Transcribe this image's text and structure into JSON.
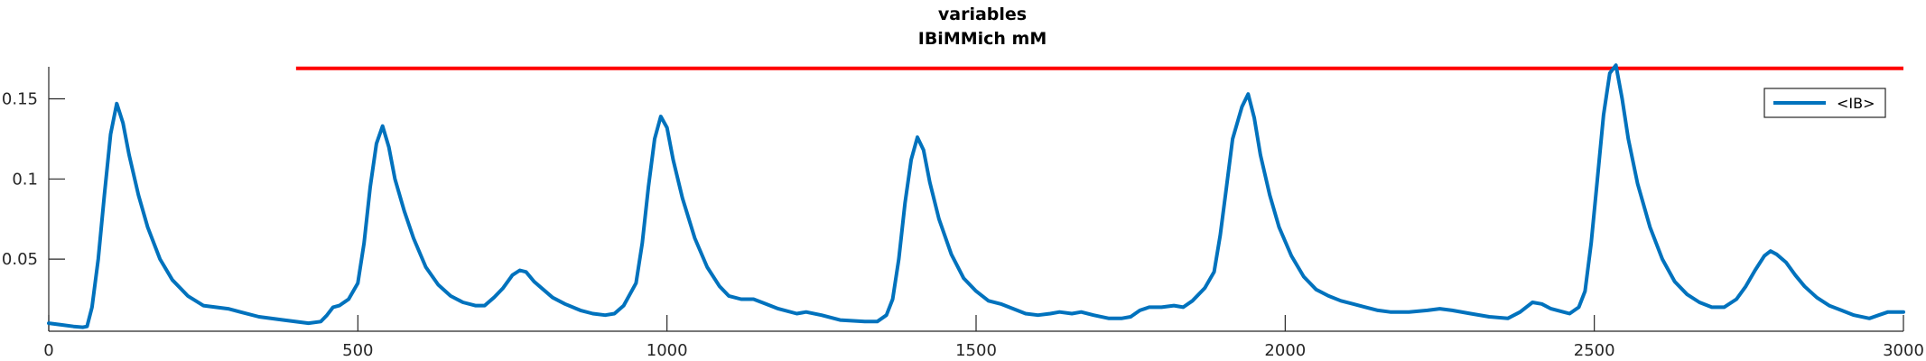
{
  "chart_data": {
    "type": "line",
    "title": [
      "variables",
      "IBiMMich mM"
    ],
    "xlim": [
      0,
      3000
    ],
    "ylim": [
      0.005,
      0.17
    ],
    "x_ticks": [
      0,
      500,
      1000,
      1500,
      2000,
      2500,
      3000
    ],
    "y_ticks": [
      0.05,
      0.1,
      0.15
    ],
    "y_tick_labels": [
      "0.05",
      "0.1",
      "0.15"
    ],
    "legend": {
      "placement": "top-right",
      "entries": [
        "<IB>"
      ]
    },
    "colors": {
      "series": "#0072BD",
      "threshold": "#FF0000",
      "axes": "#262626"
    },
    "grid": false,
    "threshold_line": {
      "y": 0.169,
      "x_start": 400,
      "x_end": 3000
    },
    "series": [
      {
        "name": "<IB>",
        "points": [
          [
            0,
            0.01
          ],
          [
            20,
            0.009
          ],
          [
            40,
            0.008
          ],
          [
            55,
            0.0075
          ],
          [
            62,
            0.008
          ],
          [
            70,
            0.02
          ],
          [
            80,
            0.05
          ],
          [
            90,
            0.09
          ],
          [
            100,
            0.128
          ],
          [
            110,
            0.147
          ],
          [
            120,
            0.135
          ],
          [
            130,
            0.115
          ],
          [
            145,
            0.09
          ],
          [
            160,
            0.07
          ],
          [
            180,
            0.05
          ],
          [
            200,
            0.037
          ],
          [
            225,
            0.027
          ],
          [
            250,
            0.021
          ],
          [
            270,
            0.02
          ],
          [
            290,
            0.019
          ],
          [
            310,
            0.017
          ],
          [
            340,
            0.014
          ],
          [
            380,
            0.012
          ],
          [
            420,
            0.01
          ],
          [
            440,
            0.011
          ],
          [
            450,
            0.015
          ],
          [
            460,
            0.02
          ],
          [
            470,
            0.021
          ],
          [
            485,
            0.025
          ],
          [
            500,
            0.035
          ],
          [
            510,
            0.06
          ],
          [
            520,
            0.095
          ],
          [
            530,
            0.122
          ],
          [
            540,
            0.133
          ],
          [
            550,
            0.12
          ],
          [
            560,
            0.1
          ],
          [
            575,
            0.08
          ],
          [
            590,
            0.063
          ],
          [
            610,
            0.045
          ],
          [
            630,
            0.034
          ],
          [
            650,
            0.027
          ],
          [
            670,
            0.023
          ],
          [
            690,
            0.021
          ],
          [
            705,
            0.021
          ],
          [
            720,
            0.026
          ],
          [
            735,
            0.032
          ],
          [
            750,
            0.04
          ],
          [
            762,
            0.043
          ],
          [
            772,
            0.042
          ],
          [
            785,
            0.036
          ],
          [
            800,
            0.031
          ],
          [
            815,
            0.026
          ],
          [
            835,
            0.022
          ],
          [
            860,
            0.018
          ],
          [
            880,
            0.016
          ],
          [
            900,
            0.015
          ],
          [
            915,
            0.016
          ],
          [
            930,
            0.021
          ],
          [
            950,
            0.035
          ],
          [
            960,
            0.06
          ],
          [
            970,
            0.095
          ],
          [
            980,
            0.125
          ],
          [
            990,
            0.139
          ],
          [
            1000,
            0.132
          ],
          [
            1010,
            0.112
          ],
          [
            1025,
            0.088
          ],
          [
            1045,
            0.063
          ],
          [
            1065,
            0.045
          ],
          [
            1085,
            0.033
          ],
          [
            1100,
            0.027
          ],
          [
            1120,
            0.025
          ],
          [
            1140,
            0.025
          ],
          [
            1160,
            0.022
          ],
          [
            1180,
            0.019
          ],
          [
            1210,
            0.016
          ],
          [
            1225,
            0.017
          ],
          [
            1250,
            0.015
          ],
          [
            1280,
            0.012
          ],
          [
            1320,
            0.011
          ],
          [
            1340,
            0.011
          ],
          [
            1355,
            0.015
          ],
          [
            1365,
            0.025
          ],
          [
            1375,
            0.05
          ],
          [
            1385,
            0.085
          ],
          [
            1395,
            0.112
          ],
          [
            1405,
            0.126
          ],
          [
            1415,
            0.118
          ],
          [
            1425,
            0.098
          ],
          [
            1440,
            0.075
          ],
          [
            1460,
            0.053
          ],
          [
            1480,
            0.038
          ],
          [
            1500,
            0.03
          ],
          [
            1520,
            0.024
          ],
          [
            1540,
            0.022
          ],
          [
            1560,
            0.019
          ],
          [
            1580,
            0.016
          ],
          [
            1600,
            0.015
          ],
          [
            1620,
            0.016
          ],
          [
            1635,
            0.017
          ],
          [
            1655,
            0.016
          ],
          [
            1670,
            0.017
          ],
          [
            1690,
            0.015
          ],
          [
            1715,
            0.013
          ],
          [
            1735,
            0.013
          ],
          [
            1750,
            0.014
          ],
          [
            1765,
            0.018
          ],
          [
            1780,
            0.02
          ],
          [
            1800,
            0.02
          ],
          [
            1820,
            0.021
          ],
          [
            1835,
            0.02
          ],
          [
            1850,
            0.024
          ],
          [
            1870,
            0.032
          ],
          [
            1885,
            0.042
          ],
          [
            1895,
            0.065
          ],
          [
            1905,
            0.095
          ],
          [
            1915,
            0.125
          ],
          [
            1930,
            0.145
          ],
          [
            1940,
            0.153
          ],
          [
            1950,
            0.138
          ],
          [
            1960,
            0.115
          ],
          [
            1975,
            0.09
          ],
          [
            1990,
            0.07
          ],
          [
            2010,
            0.052
          ],
          [
            2030,
            0.039
          ],
          [
            2050,
            0.031
          ],
          [
            2070,
            0.027
          ],
          [
            2090,
            0.024
          ],
          [
            2110,
            0.022
          ],
          [
            2130,
            0.02
          ],
          [
            2150,
            0.018
          ],
          [
            2170,
            0.017
          ],
          [
            2200,
            0.017
          ],
          [
            2230,
            0.018
          ],
          [
            2250,
            0.019
          ],
          [
            2270,
            0.018
          ],
          [
            2300,
            0.016
          ],
          [
            2330,
            0.014
          ],
          [
            2360,
            0.013
          ],
          [
            2380,
            0.017
          ],
          [
            2400,
            0.023
          ],
          [
            2415,
            0.022
          ],
          [
            2430,
            0.019
          ],
          [
            2450,
            0.017
          ],
          [
            2460,
            0.016
          ],
          [
            2475,
            0.02
          ],
          [
            2485,
            0.03
          ],
          [
            2495,
            0.06
          ],
          [
            2505,
            0.1
          ],
          [
            2515,
            0.14
          ],
          [
            2525,
            0.166
          ],
          [
            2535,
            0.171
          ],
          [
            2545,
            0.15
          ],
          [
            2555,
            0.125
          ],
          [
            2570,
            0.097
          ],
          [
            2590,
            0.07
          ],
          [
            2610,
            0.05
          ],
          [
            2630,
            0.036
          ],
          [
            2650,
            0.028
          ],
          [
            2670,
            0.023
          ],
          [
            2690,
            0.02
          ],
          [
            2710,
            0.02
          ],
          [
            2730,
            0.025
          ],
          [
            2745,
            0.033
          ],
          [
            2760,
            0.043
          ],
          [
            2775,
            0.052
          ],
          [
            2785,
            0.055
          ],
          [
            2795,
            0.053
          ],
          [
            2810,
            0.048
          ],
          [
            2825,
            0.04
          ],
          [
            2840,
            0.033
          ],
          [
            2860,
            0.026
          ],
          [
            2880,
            0.021
          ],
          [
            2900,
            0.018
          ],
          [
            2920,
            0.015
          ],
          [
            2945,
            0.013
          ],
          [
            2960,
            0.015
          ],
          [
            2975,
            0.017
          ],
          [
            2990,
            0.017
          ],
          [
            3000,
            0.017
          ]
        ]
      }
    ]
  }
}
